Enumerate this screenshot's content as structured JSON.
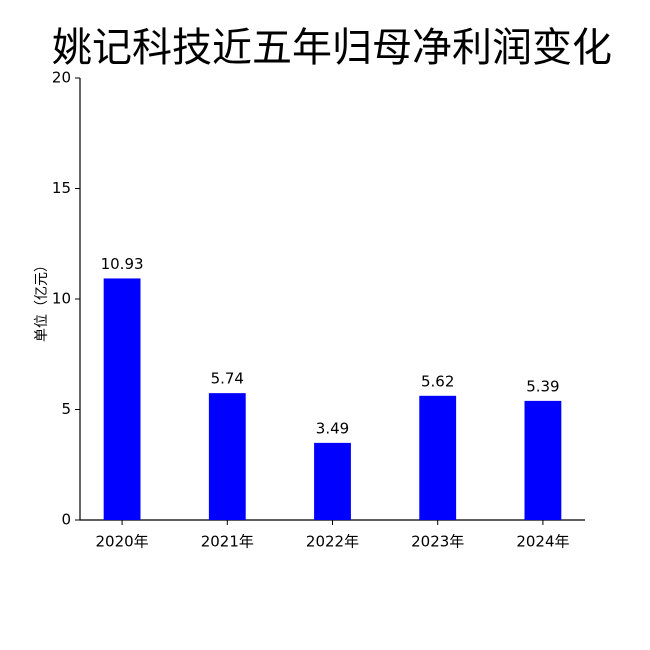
{
  "chart_data": {
    "type": "bar",
    "title": "姚记科技近五年归母净利润变化",
    "y_label": "单位（亿元）",
    "categories": [
      "2020年",
      "2021年",
      "2022年",
      "2023年",
      "2024年"
    ],
    "values": [
      10.93,
      5.74,
      3.49,
      5.62,
      5.39
    ],
    "color": "#0000ff",
    "ylim": [
      0,
      20
    ],
    "yticks": [
      0,
      5,
      10,
      15,
      20
    ],
    "grid": false
  }
}
